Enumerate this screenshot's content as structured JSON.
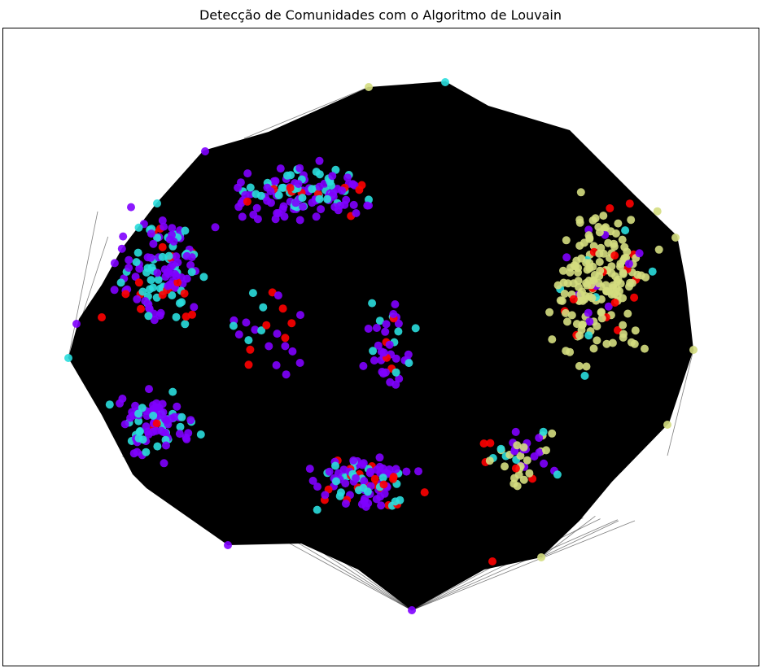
{
  "figure": {
    "title": "Detecção de Comunidades com o Algoritmo de Louvain"
  },
  "graph": {
    "layout": "spring",
    "edge_color": "#000000",
    "community_colors": [
      "#8000ff",
      "#2adddd",
      "#d4dd80",
      "#ff0000"
    ],
    "community_color_names": [
      "violet",
      "turquoise",
      "khaki",
      "red"
    ],
    "axis_visible": false
  }
}
